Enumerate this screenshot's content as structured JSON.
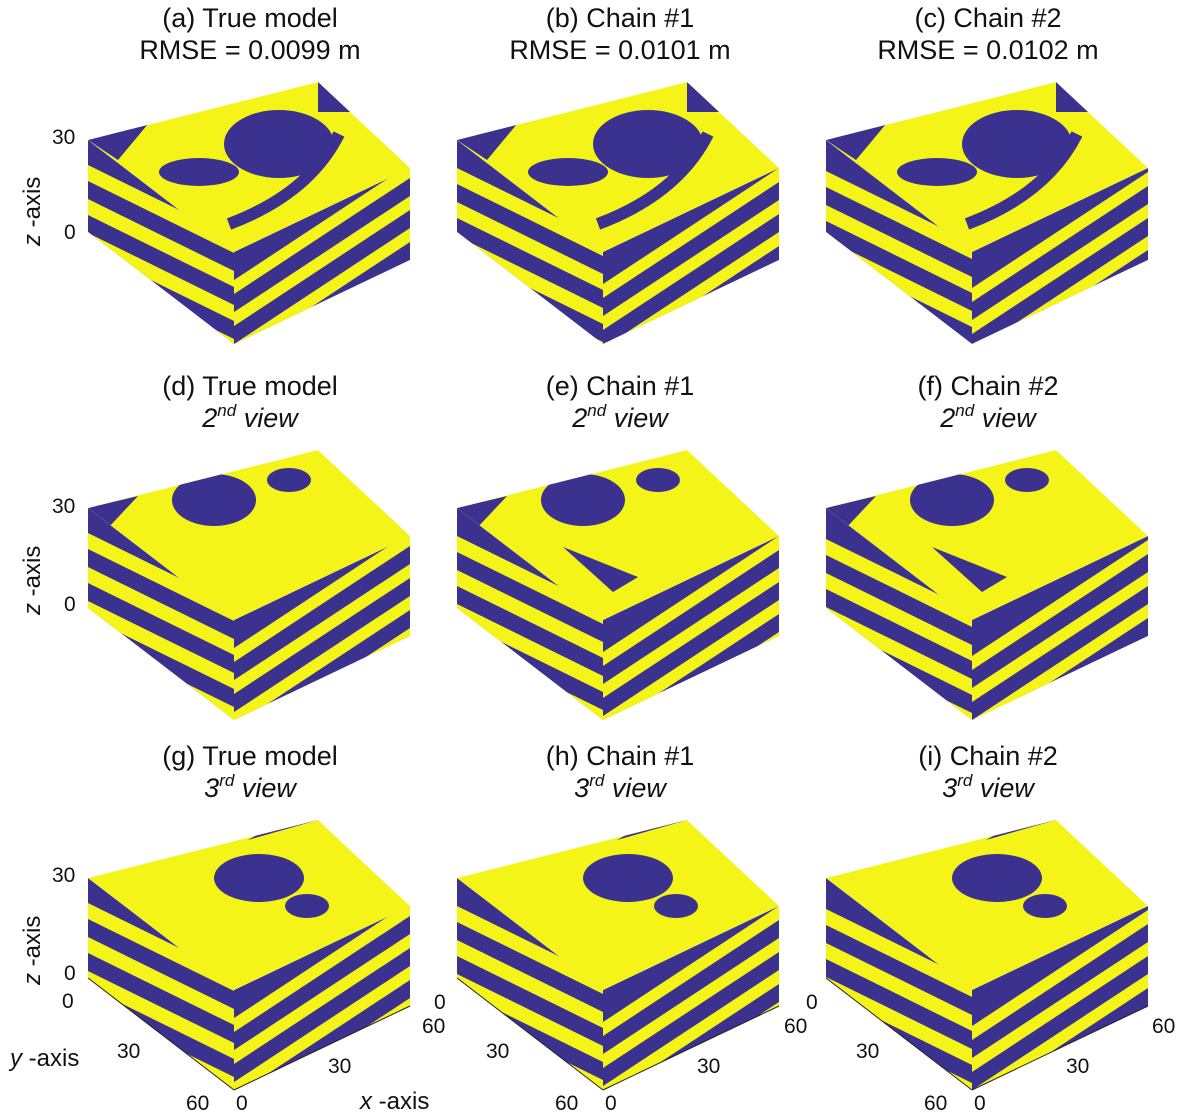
{
  "colors": {
    "facies_a": "#3B318E",
    "facies_b": "#F4F418",
    "edge": "#1a1a1a"
  },
  "axes": {
    "z_label": "z",
    "z_suffix": "-axis",
    "y_label": "y",
    "y_suffix": "-axis",
    "x_label": "x",
    "x_suffix": "-axis",
    "z_ticks": [
      "30",
      "0"
    ],
    "y_ticks": [
      "0",
      "30",
      "60"
    ],
    "x_ticks": [
      "0",
      "30",
      "60"
    ]
  },
  "panels": [
    {
      "id": "a",
      "title": "(a) True model",
      "line2": "RMSE = 0.0099 m"
    },
    {
      "id": "b",
      "title": "(b) Chain #1",
      "line2": "RMSE = 0.0101 m"
    },
    {
      "id": "c",
      "title": "(c) Chain #2",
      "line2": "RMSE = 0.0102 m"
    },
    {
      "id": "d",
      "title": "(d) True model",
      "view_num": "2",
      "view_sup": "nd",
      "view_word": "view"
    },
    {
      "id": "e",
      "title": "(e) Chain #1",
      "view_num": "2",
      "view_sup": "nd",
      "view_word": "view"
    },
    {
      "id": "f",
      "title": "(f) Chain #2",
      "view_num": "2",
      "view_sup": "nd",
      "view_word": "view"
    },
    {
      "id": "g",
      "title": "(g) True model",
      "view_num": "3",
      "view_sup": "rd",
      "view_word": "view"
    },
    {
      "id": "h",
      "title": "(h) Chain #1",
      "view_num": "3",
      "view_sup": "rd",
      "view_word": "view"
    },
    {
      "id": "i",
      "title": "(i) Chain #2",
      "view_num": "3",
      "view_sup": "rd",
      "view_word": "view"
    }
  ]
}
